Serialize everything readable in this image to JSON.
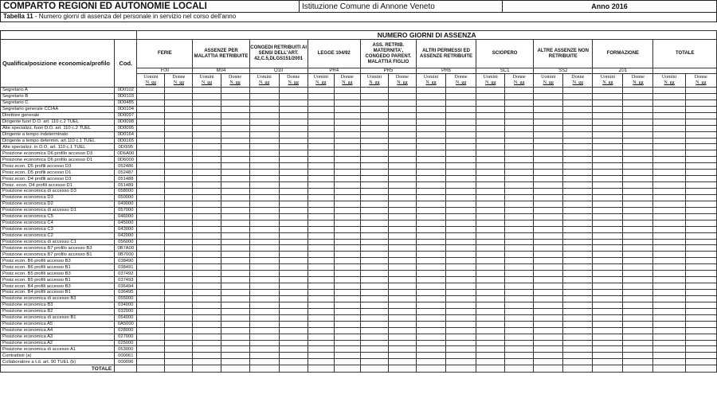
{
  "header": {
    "title": "COMPARTO REGIONI ED AUTONOMIE LOCALI",
    "institution": "Istituzione Comune di Annone Veneto",
    "year": "Anno 2016"
  },
  "subtitle": {
    "table_no": "Tabella 11",
    "text": " - Numero giorni di assenza del personale in servizio nel corso dell'anno"
  },
  "table": {
    "group_title": "NUMERO GIORNI DI ASSENZA",
    "col_qualifica": "Qualifica/posizione economica/profilo",
    "col_cod": "Cod.",
    "categories": [
      {
        "label": "FERIE",
        "code": "F00"
      },
      {
        "label": "ASSENZE PER MALATTIA RETRIBUITE",
        "code": "M04"
      },
      {
        "label": "CONGEDI RETRIBUITI AI SENSI DELL'ART. 42,C.5,DLGS151/2001",
        "code": "O10"
      },
      {
        "label": "LEGGE 104/92",
        "code": "PR4"
      },
      {
        "label": "ASS. RETRIB. MATERNITA', CONGEDO PARENT. MALATTIA FIGLIO",
        "code": "PR5"
      },
      {
        "label": "ALTRI PERMESSI ED ASSENZE RETRIBUITE",
        "code": "PR6"
      },
      {
        "label": "SCIOPERO",
        "code": "SC1"
      },
      {
        "label": "ALTRE ASSENZE NON RETRIBUITE",
        "code": "SS2"
      },
      {
        "label": "FORMAZIONE",
        "code": "Z01"
      },
      {
        "label": "TOTALE",
        "code": ""
      }
    ],
    "sub_men": "Uomini",
    "sub_women": "Donne",
    "sub_unit": "N. gg",
    "rows": [
      [
        "Segretario A",
        "0D0102"
      ],
      [
        "Segretario B",
        "0D0103"
      ],
      [
        "Segretario C",
        "0D0485"
      ],
      [
        "Segretario generale CCIAA",
        "0D0104"
      ],
      [
        "Direttore generale",
        "0D0097"
      ],
      [
        "Dirigente fuori D.O. art. 110 c.2 TUEL",
        "0D0098"
      ],
      [
        "Alte specializz. fuori D.O. art. 110 c.2 TUEL",
        "0D0095"
      ],
      [
        "Dirigente a tempo indeterminato",
        "0D0164"
      ],
      [
        "Dirigente a tempo determin. art.110 c.1 TUEL",
        "0D0165"
      ],
      [
        "Alte specializz. in D.O. art. 110 c.1 TUEL",
        "0D0I95"
      ],
      [
        "Posizione economica D6 profilo accesso D3",
        "0D6A00"
      ],
      [
        "Posizione economica D6 profilo accesso D1",
        "0D6000"
      ],
      [
        "Posiz.econ. D5 profili accesso D3",
        "052486"
      ],
      [
        "Posiz.econ. D5 profili accesso D1",
        "052487"
      ],
      [
        "Posiz.econ. D4 profili accesso D3",
        "051488"
      ],
      [
        "Posiz. econ. D4 profili accesso D1",
        "051489"
      ],
      [
        "Posizione economica di accesso D3",
        "058000"
      ],
      [
        "Posizione economica D3",
        "050000"
      ],
      [
        "Posizione economica D2",
        "049000"
      ],
      [
        "Posizione economica di accesso D1",
        "057000"
      ],
      [
        "Posizione economica C5",
        "046000"
      ],
      [
        "Posizione economica C4",
        "045000"
      ],
      [
        "Posizione economica C3",
        "043000"
      ],
      [
        "Posizione economica C2",
        "042000"
      ],
      [
        "Posizione economica di accesso C1",
        "056000"
      ],
      [
        "Posizione economica B7 profilo accesso B3",
        "0B7A00"
      ],
      [
        "Posizione economica B7 profilo accesso B1",
        "0B7000"
      ],
      [
        "Posiz.econ. B6 profili accesso B3",
        "038490"
      ],
      [
        "Posiz.econ. B6 profili accesso B1",
        "038491"
      ],
      [
        "Posiz.econ. B5 profili accesso B3",
        "037492"
      ],
      [
        "Posiz.econ. B5 profili accesso B1",
        "037493"
      ],
      [
        "Posiz.econ. B4 profili accesso B3",
        "036494"
      ],
      [
        "Posiz.econ. B4 profili accesso B1",
        "036495"
      ],
      [
        "Posizione economica di accesso B3",
        "055000"
      ],
      [
        "Posizione economica B3",
        "034000"
      ],
      [
        "Posizione economica B2",
        "032000"
      ],
      [
        "Posizione economica di accesso B1",
        "054000"
      ],
      [
        "Posizione economica A5",
        "0A5000"
      ],
      [
        "Posizione economica A4",
        "028000"
      ],
      [
        "Posizione economica A3",
        "027000"
      ],
      [
        "Posizione economica A2",
        "025000"
      ],
      [
        "Posizione economica di accesso A1",
        "053000"
      ],
      [
        "Contrattisti (a)",
        "000061"
      ],
      [
        "Collaboratore a t.d. art. 90 TUEL (b)",
        "000096"
      ]
    ],
    "total_label": "TOTALE"
  }
}
